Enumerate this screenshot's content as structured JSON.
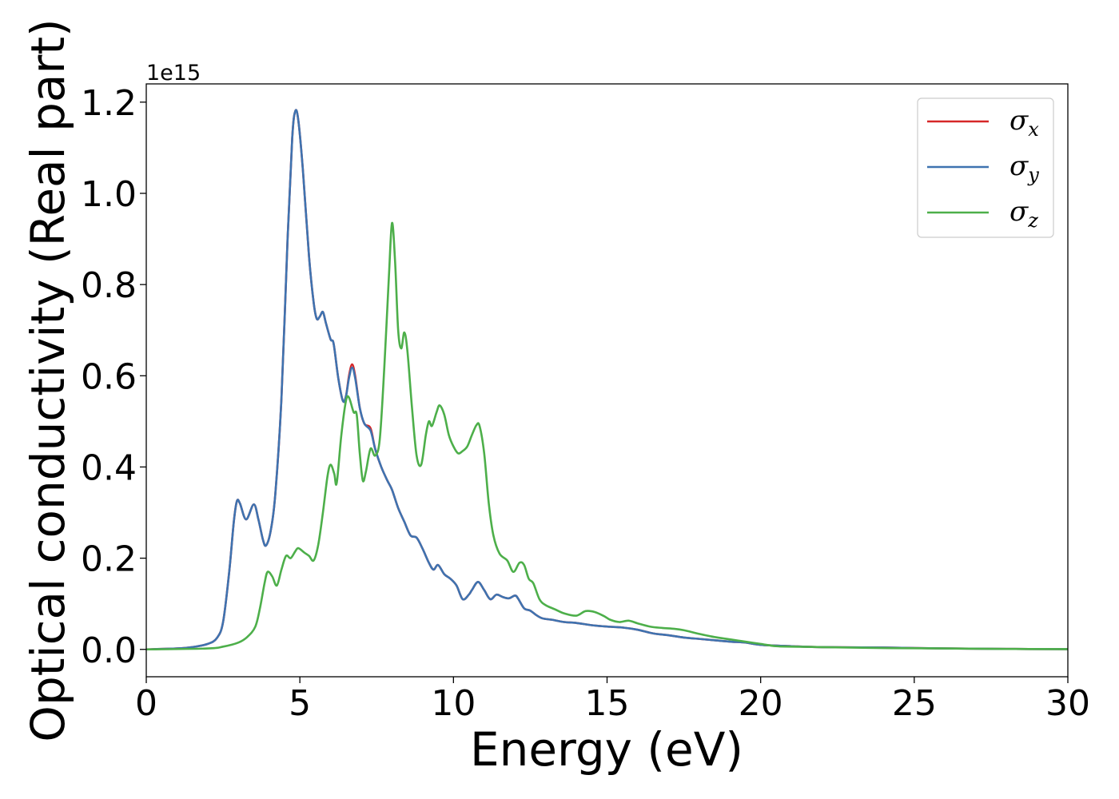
{
  "chart_data": {
    "type": "line",
    "xlabel": "Energy (eV)",
    "ylabel": "Optical conductivity (Real part)",
    "y_offset_label": "1e15",
    "xlim": [
      0,
      30
    ],
    "ylim": [
      -0.06,
      1.24
    ],
    "x_ticks": [
      0,
      5,
      10,
      15,
      20,
      25,
      30
    ],
    "x_tick_labels": [
      "0",
      "5",
      "10",
      "15",
      "20",
      "25",
      "30"
    ],
    "y_ticks": [
      0.0,
      0.2,
      0.4,
      0.6,
      0.8,
      1.0,
      1.2
    ],
    "y_tick_labels": [
      "0.0",
      "0.2",
      "0.4",
      "0.6",
      "0.8",
      "1.0",
      "1.2"
    ],
    "grid": false,
    "legend_position": "top-right",
    "series": [
      {
        "name": "σx",
        "legend_symbol": "σ",
        "legend_sub": "x",
        "color": "#d62728",
        "points": [
          [
            0,
            0
          ],
          [
            1,
            0.002
          ],
          [
            1.5,
            0.005
          ],
          [
            2,
            0.012
          ],
          [
            2.3,
            0.025
          ],
          [
            2.5,
            0.06
          ],
          [
            2.7,
            0.17
          ],
          [
            2.85,
            0.28
          ],
          [
            2.95,
            0.325
          ],
          [
            3.05,
            0.32
          ],
          [
            3.25,
            0.285
          ],
          [
            3.5,
            0.318
          ],
          [
            3.65,
            0.285
          ],
          [
            3.8,
            0.24
          ],
          [
            3.9,
            0.228
          ],
          [
            4.05,
            0.26
          ],
          [
            4.2,
            0.34
          ],
          [
            4.4,
            0.55
          ],
          [
            4.6,
            0.9
          ],
          [
            4.75,
            1.12
          ],
          [
            4.85,
            1.18
          ],
          [
            4.95,
            1.16
          ],
          [
            5.1,
            1.05
          ],
          [
            5.3,
            0.86
          ],
          [
            5.45,
            0.76
          ],
          [
            5.55,
            0.725
          ],
          [
            5.65,
            0.73
          ],
          [
            5.75,
            0.74
          ],
          [
            5.85,
            0.715
          ],
          [
            6.0,
            0.68
          ],
          [
            6.1,
            0.67
          ],
          [
            6.25,
            0.595
          ],
          [
            6.4,
            0.545
          ],
          [
            6.5,
            0.555
          ],
          [
            6.6,
            0.6
          ],
          [
            6.7,
            0.625
          ],
          [
            6.8,
            0.6
          ],
          [
            6.95,
            0.53
          ],
          [
            7.1,
            0.495
          ],
          [
            7.3,
            0.485
          ],
          [
            7.45,
            0.44
          ],
          [
            7.65,
            0.4
          ],
          [
            7.85,
            0.37
          ],
          [
            8.0,
            0.35
          ],
          [
            8.2,
            0.31
          ],
          [
            8.4,
            0.28
          ],
          [
            8.6,
            0.25
          ],
          [
            8.8,
            0.245
          ],
          [
            9.0,
            0.22
          ],
          [
            9.2,
            0.19
          ],
          [
            9.35,
            0.175
          ],
          [
            9.5,
            0.185
          ],
          [
            9.7,
            0.165
          ],
          [
            9.9,
            0.155
          ],
          [
            10.1,
            0.14
          ],
          [
            10.3,
            0.11
          ],
          [
            10.5,
            0.12
          ],
          [
            10.6,
            0.13
          ],
          [
            10.8,
            0.148
          ],
          [
            11.0,
            0.13
          ],
          [
            11.2,
            0.11
          ],
          [
            11.4,
            0.12
          ],
          [
            11.6,
            0.115
          ],
          [
            11.8,
            0.112
          ],
          [
            12.0,
            0.118
          ],
          [
            12.1,
            0.112
          ],
          [
            12.3,
            0.09
          ],
          [
            12.5,
            0.085
          ],
          [
            12.7,
            0.075
          ],
          [
            12.9,
            0.068
          ],
          [
            13.2,
            0.065
          ],
          [
            13.6,
            0.06
          ],
          [
            14.0,
            0.058
          ],
          [
            14.5,
            0.053
          ],
          [
            15.0,
            0.05
          ],
          [
            15.5,
            0.048
          ],
          [
            16.0,
            0.043
          ],
          [
            16.5,
            0.035
          ],
          [
            17.0,
            0.031
          ],
          [
            17.5,
            0.026
          ],
          [
            18.0,
            0.023
          ],
          [
            18.5,
            0.02
          ],
          [
            19.0,
            0.017
          ],
          [
            19.5,
            0.015
          ],
          [
            20.0,
            0.01
          ],
          [
            21,
            0.007
          ],
          [
            22,
            0.005
          ],
          [
            24,
            0.004
          ],
          [
            26,
            0.002
          ],
          [
            28,
            0.001
          ],
          [
            30,
            0.0005
          ]
        ]
      },
      {
        "name": "σy",
        "legend_symbol": "σ",
        "legend_sub": "y",
        "color": "#3e73b0",
        "points": [
          [
            0,
            0
          ],
          [
            1,
            0.002
          ],
          [
            1.5,
            0.005
          ],
          [
            2,
            0.012
          ],
          [
            2.3,
            0.025
          ],
          [
            2.5,
            0.06
          ],
          [
            2.7,
            0.17
          ],
          [
            2.85,
            0.28
          ],
          [
            2.95,
            0.325
          ],
          [
            3.05,
            0.32
          ],
          [
            3.25,
            0.285
          ],
          [
            3.5,
            0.318
          ],
          [
            3.65,
            0.285
          ],
          [
            3.8,
            0.24
          ],
          [
            3.9,
            0.228
          ],
          [
            4.05,
            0.26
          ],
          [
            4.2,
            0.34
          ],
          [
            4.4,
            0.55
          ],
          [
            4.6,
            0.9
          ],
          [
            4.75,
            1.12
          ],
          [
            4.85,
            1.18
          ],
          [
            4.95,
            1.16
          ],
          [
            5.1,
            1.05
          ],
          [
            5.3,
            0.86
          ],
          [
            5.45,
            0.76
          ],
          [
            5.55,
            0.725
          ],
          [
            5.65,
            0.73
          ],
          [
            5.75,
            0.74
          ],
          [
            5.85,
            0.715
          ],
          [
            6.0,
            0.68
          ],
          [
            6.1,
            0.67
          ],
          [
            6.25,
            0.595
          ],
          [
            6.4,
            0.545
          ],
          [
            6.5,
            0.555
          ],
          [
            6.6,
            0.595
          ],
          [
            6.7,
            0.618
          ],
          [
            6.8,
            0.595
          ],
          [
            6.95,
            0.53
          ],
          [
            7.1,
            0.495
          ],
          [
            7.3,
            0.48
          ],
          [
            7.45,
            0.44
          ],
          [
            7.65,
            0.4
          ],
          [
            7.85,
            0.37
          ],
          [
            8.0,
            0.35
          ],
          [
            8.2,
            0.31
          ],
          [
            8.4,
            0.28
          ],
          [
            8.6,
            0.25
          ],
          [
            8.8,
            0.245
          ],
          [
            9.0,
            0.22
          ],
          [
            9.2,
            0.19
          ],
          [
            9.35,
            0.175
          ],
          [
            9.5,
            0.185
          ],
          [
            9.7,
            0.165
          ],
          [
            9.9,
            0.155
          ],
          [
            10.1,
            0.14
          ],
          [
            10.3,
            0.11
          ],
          [
            10.5,
            0.12
          ],
          [
            10.6,
            0.13
          ],
          [
            10.8,
            0.148
          ],
          [
            11.0,
            0.13
          ],
          [
            11.2,
            0.11
          ],
          [
            11.4,
            0.12
          ],
          [
            11.6,
            0.115
          ],
          [
            11.8,
            0.112
          ],
          [
            12.0,
            0.118
          ],
          [
            12.1,
            0.112
          ],
          [
            12.3,
            0.09
          ],
          [
            12.5,
            0.085
          ],
          [
            12.7,
            0.075
          ],
          [
            12.9,
            0.068
          ],
          [
            13.2,
            0.065
          ],
          [
            13.6,
            0.06
          ],
          [
            14.0,
            0.058
          ],
          [
            14.5,
            0.053
          ],
          [
            15.0,
            0.05
          ],
          [
            15.5,
            0.048
          ],
          [
            16.0,
            0.043
          ],
          [
            16.5,
            0.035
          ],
          [
            17.0,
            0.031
          ],
          [
            17.5,
            0.026
          ],
          [
            18.0,
            0.023
          ],
          [
            18.5,
            0.02
          ],
          [
            19.0,
            0.017
          ],
          [
            19.5,
            0.015
          ],
          [
            20.0,
            0.01
          ],
          [
            21,
            0.007
          ],
          [
            22,
            0.005
          ],
          [
            24,
            0.004
          ],
          [
            26,
            0.002
          ],
          [
            28,
            0.001
          ],
          [
            30,
            0.0005
          ]
        ]
      },
      {
        "name": "σz",
        "legend_symbol": "σ",
        "legend_sub": "z",
        "color": "#4daf4a",
        "points": [
          [
            0,
            0
          ],
          [
            2,
            0.002
          ],
          [
            2.5,
            0.006
          ],
          [
            3,
            0.015
          ],
          [
            3.3,
            0.028
          ],
          [
            3.55,
            0.05
          ],
          [
            3.7,
            0.09
          ],
          [
            3.85,
            0.145
          ],
          [
            3.95,
            0.17
          ],
          [
            4.1,
            0.16
          ],
          [
            4.25,
            0.14
          ],
          [
            4.4,
            0.175
          ],
          [
            4.55,
            0.205
          ],
          [
            4.7,
            0.2
          ],
          [
            4.85,
            0.215
          ],
          [
            4.95,
            0.222
          ],
          [
            5.15,
            0.212
          ],
          [
            5.3,
            0.205
          ],
          [
            5.45,
            0.195
          ],
          [
            5.6,
            0.23
          ],
          [
            5.75,
            0.3
          ],
          [
            5.9,
            0.38
          ],
          [
            6.0,
            0.405
          ],
          [
            6.12,
            0.385
          ],
          [
            6.2,
            0.365
          ],
          [
            6.35,
            0.47
          ],
          [
            6.5,
            0.545
          ],
          [
            6.6,
            0.552
          ],
          [
            6.75,
            0.52
          ],
          [
            6.85,
            0.515
          ],
          [
            6.95,
            0.43
          ],
          [
            7.05,
            0.37
          ],
          [
            7.15,
            0.39
          ],
          [
            7.3,
            0.44
          ],
          [
            7.45,
            0.425
          ],
          [
            7.6,
            0.46
          ],
          [
            7.75,
            0.62
          ],
          [
            7.9,
            0.82
          ],
          [
            8.0,
            0.935
          ],
          [
            8.1,
            0.85
          ],
          [
            8.2,
            0.7
          ],
          [
            8.3,
            0.66
          ],
          [
            8.4,
            0.695
          ],
          [
            8.5,
            0.655
          ],
          [
            8.65,
            0.53
          ],
          [
            8.8,
            0.425
          ],
          [
            8.95,
            0.405
          ],
          [
            9.1,
            0.47
          ],
          [
            9.2,
            0.5
          ],
          [
            9.3,
            0.49
          ],
          [
            9.45,
            0.52
          ],
          [
            9.55,
            0.535
          ],
          [
            9.7,
            0.515
          ],
          [
            9.85,
            0.47
          ],
          [
            10.0,
            0.445
          ],
          [
            10.15,
            0.43
          ],
          [
            10.3,
            0.435
          ],
          [
            10.45,
            0.445
          ],
          [
            10.6,
            0.47
          ],
          [
            10.75,
            0.492
          ],
          [
            10.85,
            0.49
          ],
          [
            11.0,
            0.43
          ],
          [
            11.15,
            0.32
          ],
          [
            11.3,
            0.25
          ],
          [
            11.5,
            0.21
          ],
          [
            11.75,
            0.195
          ],
          [
            11.95,
            0.17
          ],
          [
            12.15,
            0.19
          ],
          [
            12.3,
            0.185
          ],
          [
            12.45,
            0.155
          ],
          [
            12.6,
            0.145
          ],
          [
            12.8,
            0.11
          ],
          [
            13.0,
            0.097
          ],
          [
            13.3,
            0.088
          ],
          [
            13.6,
            0.079
          ],
          [
            14.0,
            0.074
          ],
          [
            14.3,
            0.084
          ],
          [
            14.6,
            0.082
          ],
          [
            14.9,
            0.073
          ],
          [
            15.1,
            0.065
          ],
          [
            15.4,
            0.06
          ],
          [
            15.7,
            0.063
          ],
          [
            16.0,
            0.057
          ],
          [
            16.4,
            0.05
          ],
          [
            16.8,
            0.047
          ],
          [
            17.2,
            0.045
          ],
          [
            17.5,
            0.042
          ],
          [
            18.0,
            0.034
          ],
          [
            18.5,
            0.027
          ],
          [
            19.0,
            0.022
          ],
          [
            19.5,
            0.017
          ],
          [
            20.0,
            0.012
          ],
          [
            20.5,
            0.007
          ],
          [
            21,
            0.006
          ],
          [
            22,
            0.005
          ],
          [
            24,
            0.003
          ],
          [
            26,
            0.002
          ],
          [
            28,
            0.001
          ],
          [
            30,
            0.0005
          ]
        ]
      }
    ]
  }
}
